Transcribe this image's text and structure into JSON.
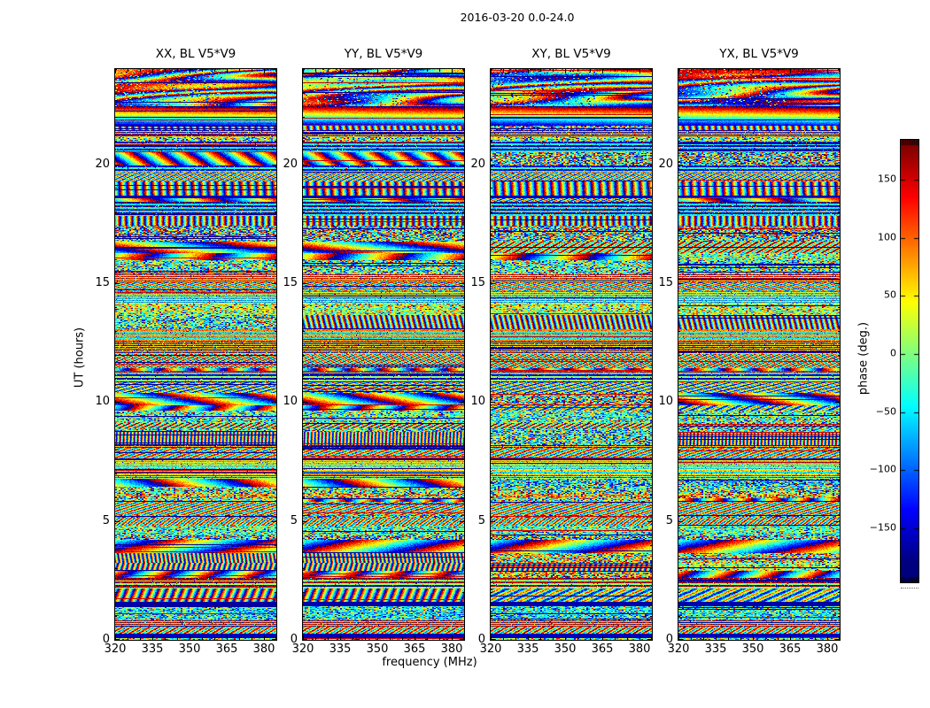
{
  "chart_data": {
    "type": "heatmap",
    "title": "2016-03-20 0.0-24.0",
    "xlabel": "frequency (MHz)",
    "ylabel": "UT (hours)",
    "x_range": [
      320,
      385
    ],
    "x_ticks": [
      320,
      335,
      350,
      365,
      380
    ],
    "x_minor_step": 5,
    "y_range": [
      0,
      24
    ],
    "y_ticks": [
      0,
      5,
      10,
      15,
      20
    ],
    "colormap": "jet",
    "grid": false,
    "panels": [
      {
        "title": "XX, BL V5*V9"
      },
      {
        "title": "YY, BL V5*V9"
      },
      {
        "title": "XY, BL V5*V9"
      },
      {
        "title": "YX, BL V5*V9"
      }
    ],
    "colorbar": {
      "label": "phase (deg.)",
      "range": [
        -180,
        180
      ],
      "tick_values": [
        150,
        100,
        50,
        0,
        -50,
        -100,
        -150
      ],
      "tick_labels": [
        "150",
        "100",
        "50",
        "0",
        "−50",
        "−100",
        "−150"
      ],
      "extend_hatched": true
    },
    "render": {
      "band_seed": 9,
      "panel_seeds": [
        101,
        202,
        303,
        404
      ],
      "coherence": [
        0.85,
        1.0,
        0.45,
        0.55
      ],
      "top_fringe_rows": 42,
      "ramp_rows": 22
    }
  }
}
